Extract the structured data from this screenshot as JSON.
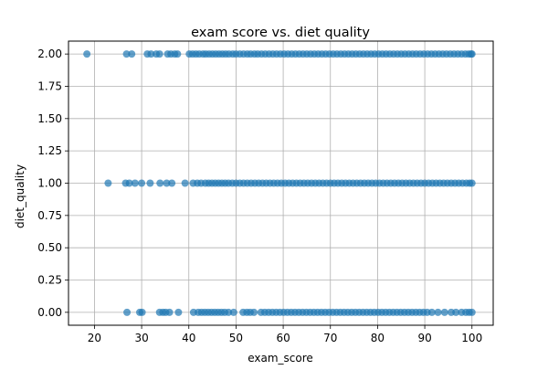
{
  "chart_data": {
    "type": "scatter",
    "title": "exam score vs. diet quality",
    "xlabel": "exam_score",
    "ylabel": "diet_quality",
    "xlim": [
      14.5,
      104.5
    ],
    "ylim": [
      -0.1,
      2.1
    ],
    "xticks": [
      20,
      30,
      40,
      50,
      60,
      70,
      80,
      90,
      100
    ],
    "yticks": [
      0.0,
      0.25,
      0.5,
      0.75,
      1.0,
      1.25,
      1.5,
      1.75,
      2.0
    ],
    "ytick_labels": [
      "0.00",
      "0.25",
      "0.50",
      "0.75",
      "1.00",
      "1.25",
      "1.50",
      "1.75",
      "2.00"
    ],
    "grid": true,
    "marker_color": "#1f77b4",
    "series": [
      {
        "y": 2.0,
        "x": [
          18.4,
          26.8,
          27.9,
          31.2,
          32.0,
          33.1,
          33.8,
          35.5,
          36.2,
          37.0,
          37.6,
          40.1,
          40.8,
          41.5,
          42.2,
          43.0,
          43.6,
          44.3,
          45.0,
          45.7,
          46.4,
          47.1,
          47.8,
          48.5,
          49.3,
          50.0,
          50.8,
          51.6,
          52.4,
          53.1,
          53.9,
          54.6,
          55.4,
          56.2,
          57.0,
          57.8,
          58.6,
          59.4,
          60.2,
          61.0,
          61.8,
          62.6,
          63.4,
          64.2,
          65.0,
          65.8,
          66.6,
          67.4,
          68.2,
          69.0,
          69.8,
          70.6,
          71.4,
          72.2,
          73.0,
          73.8,
          74.6,
          75.4,
          76.2,
          77.0,
          77.8,
          78.6,
          79.4,
          80.2,
          81.0,
          81.8,
          82.6,
          83.4,
          84.2,
          85.0,
          85.8,
          86.6,
          87.4,
          88.2,
          89.0,
          89.8,
          90.6,
          91.4,
          92.2,
          93.0,
          93.8,
          94.6,
          95.4,
          96.2,
          97.0,
          97.8,
          98.6,
          99.3,
          99.8,
          100.0
        ]
      },
      {
        "y": 1.0,
        "x": [
          22.9,
          26.6,
          27.4,
          28.6,
          30.0,
          31.8,
          33.9,
          35.3,
          36.4,
          39.2,
          40.9,
          41.8,
          42.6,
          43.5,
          44.2,
          44.9,
          45.6,
          46.3,
          47.0,
          47.7,
          48.4,
          49.2,
          50.0,
          50.8,
          51.6,
          52.4,
          53.2,
          54.0,
          54.8,
          55.6,
          56.4,
          57.2,
          58.0,
          58.8,
          59.6,
          60.4,
          61.2,
          62.0,
          62.8,
          63.6,
          64.4,
          65.2,
          66.0,
          66.8,
          67.6,
          68.4,
          69.2,
          70.0,
          70.8,
          71.6,
          72.4,
          73.2,
          74.0,
          74.8,
          75.6,
          76.4,
          77.2,
          78.0,
          78.8,
          79.6,
          80.4,
          81.2,
          82.0,
          82.8,
          83.6,
          84.4,
          85.2,
          86.0,
          86.8,
          87.6,
          88.4,
          89.2,
          90.0,
          90.8,
          91.6,
          92.4,
          93.2,
          94.0,
          94.8,
          95.6,
          96.4,
          97.2,
          98.0,
          98.8,
          99.5,
          100.0
        ]
      },
      {
        "y": 0.0,
        "x": [
          26.9,
          29.6,
          30.1,
          33.8,
          34.5,
          35.1,
          35.9,
          37.8,
          41.0,
          42.0,
          42.7,
          43.4,
          44.1,
          44.8,
          45.5,
          46.2,
          46.9,
          47.6,
          48.4,
          49.5,
          51.5,
          52.3,
          53.0,
          53.8,
          55.3,
          56.1,
          56.9,
          57.7,
          58.5,
          59.3,
          60.1,
          60.9,
          61.7,
          62.5,
          63.3,
          64.1,
          64.9,
          65.7,
          66.5,
          67.3,
          68.1,
          68.9,
          69.7,
          70.5,
          71.3,
          72.1,
          72.9,
          73.7,
          74.5,
          75.3,
          76.1,
          76.9,
          77.7,
          78.5,
          79.3,
          80.1,
          80.9,
          81.7,
          82.5,
          83.3,
          84.1,
          84.9,
          85.7,
          86.5,
          87.3,
          88.1,
          88.9,
          89.7,
          90.5,
          91.5,
          92.8,
          94.2,
          95.6,
          96.6,
          97.8,
          98.7,
          99.4,
          100.0
        ]
      }
    ]
  }
}
